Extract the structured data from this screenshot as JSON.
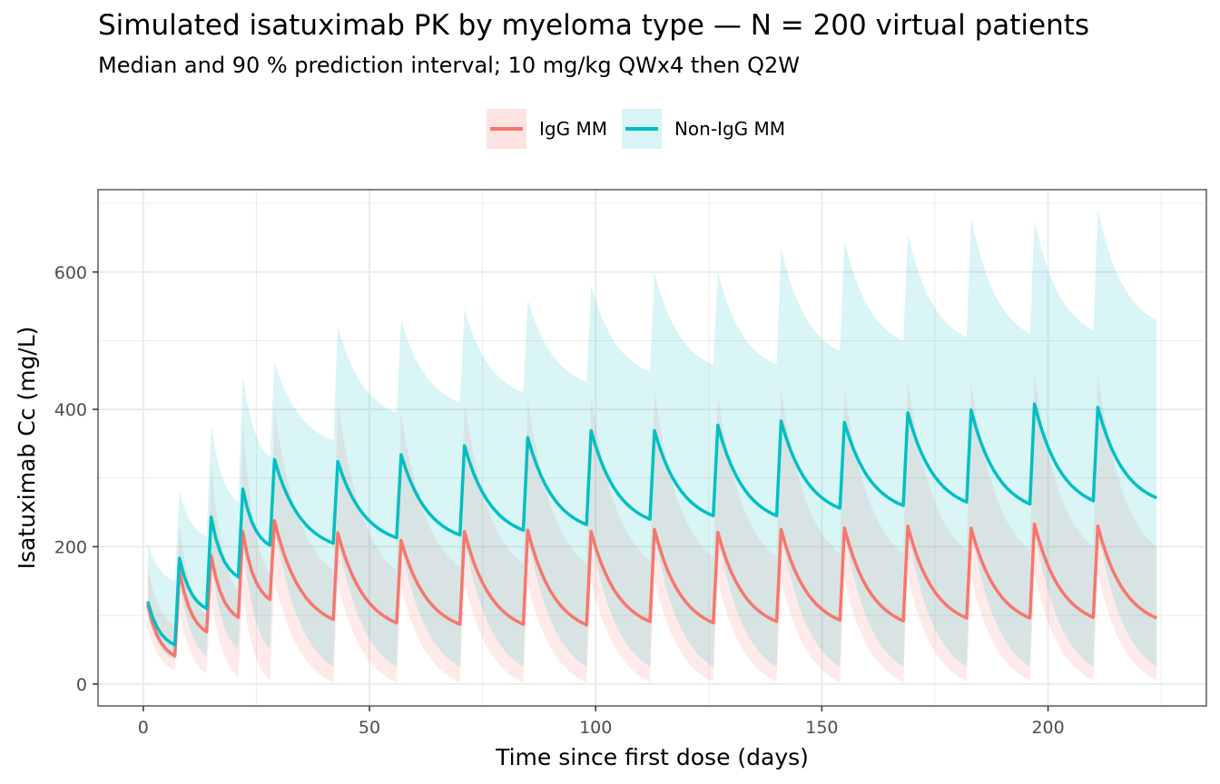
{
  "chart_data": {
    "type": "area",
    "title": "Simulated isatuximab PK by myeloma type — N = 200 virtual patients",
    "subtitle": "Median and 90 % prediction interval; 10 mg/kg QWx4 then Q2W",
    "xlabel": "Time since first dose (days)",
    "ylabel": "Isatuximab Cc (mg/L)",
    "xlim": [
      -10,
      235
    ],
    "ylim": [
      -32,
      720
    ],
    "xticks": [
      0,
      50,
      100,
      150,
      200
    ],
    "yticks": [
      0,
      200,
      400,
      600
    ],
    "grid": true,
    "legend_position": "top",
    "dose_days": [
      1,
      8,
      15,
      22,
      29,
      43,
      57,
      71,
      85,
      99,
      113,
      127,
      141,
      155,
      169,
      183,
      197,
      211
    ],
    "end_day": 224,
    "series": [
      {
        "name": "IgG MM",
        "color": "#F8766D",
        "fill": "#FDE3E2",
        "median_peaks": [
          115,
          165,
          187,
          222,
          238,
          220,
          209,
          222,
          224,
          222,
          225,
          221,
          225,
          227,
          230,
          227,
          233,
          230
        ],
        "median_troughs": [
          41,
          76,
          97,
          123,
          94,
          89,
          87,
          87,
          86,
          91,
          89,
          91,
          93,
          92,
          96,
          96,
          97,
          96
        ],
        "p05_peaks": [
          80,
          105,
          125,
          130,
          150,
          145,
          140,
          145,
          145,
          150,
          150,
          150,
          150,
          150,
          155,
          155,
          160,
          160
        ],
        "p05_troughs": [
          20,
          15,
          10,
          5,
          2,
          2,
          2,
          2,
          2,
          3,
          3,
          3,
          3,
          3,
          4,
          5,
          5,
          5
        ],
        "p95_peaks": [
          170,
          230,
          320,
          380,
          400,
          410,
          395,
          410,
          415,
          420,
          425,
          420,
          430,
          430,
          440,
          440,
          450,
          450
        ],
        "p95_troughs": [
          85,
          100,
          135,
          160,
          165,
          165,
          170,
          175,
          175,
          180,
          185,
          185,
          190,
          190,
          195,
          195,
          200,
          200
        ]
      },
      {
        "name": "Non-IgG MM",
        "color": "#00BFC4",
        "fill": "#D8F4F5",
        "median_peaks": [
          120,
          183,
          243,
          284,
          327,
          324,
          334,
          347,
          359,
          369,
          369,
          377,
          383,
          381,
          395,
          399,
          408,
          403
        ],
        "median_troughs": [
          57,
          110,
          156,
          202,
          205,
          213,
          217,
          224,
          232,
          240,
          245,
          245,
          256,
          260,
          265,
          262,
          267,
          271
        ],
        "p05_peaks": [
          100,
          150,
          175,
          205,
          230,
          210,
          200,
          210,
          215,
          215,
          215,
          215,
          220,
          220,
          220,
          225,
          225,
          225
        ],
        "p05_troughs": [
          35,
          40,
          50,
          50,
          25,
          25,
          25,
          25,
          25,
          25,
          25,
          25,
          25,
          25,
          25,
          25,
          25,
          25
        ],
        "p95_peaks": [
          205,
          280,
          375,
          450,
          470,
          520,
          530,
          545,
          560,
          580,
          600,
          600,
          635,
          645,
          655,
          680,
          675,
          690
        ],
        "p95_troughs": [
          150,
          215,
          265,
          330,
          355,
          395,
          410,
          425,
          440,
          455,
          465,
          465,
          485,
          500,
          505,
          510,
          515,
          530
        ]
      }
    ]
  },
  "legend": {
    "items": [
      {
        "label": "IgG MM",
        "color": "#F8766D",
        "fill": "#FDE3E2"
      },
      {
        "label": "Non-IgG MM",
        "color": "#00BFC4",
        "fill": "#D8F4F5"
      }
    ]
  }
}
